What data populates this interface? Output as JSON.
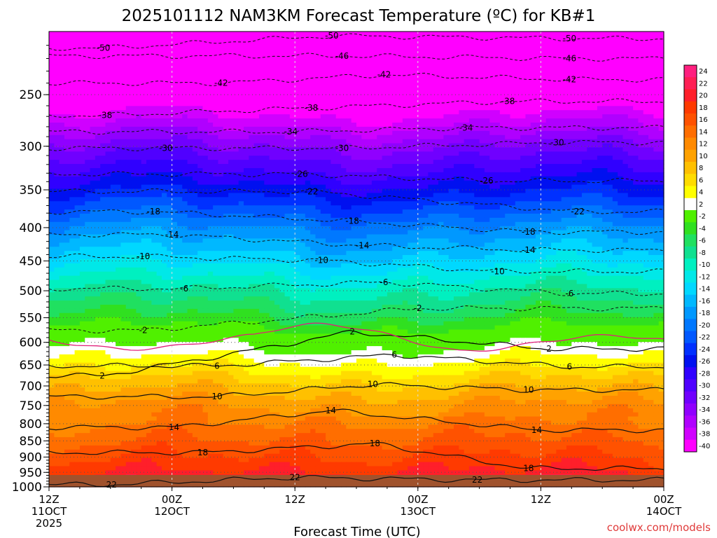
{
  "chart_data": {
    "type": "heatmap",
    "title": "2025101112 NAM3KM Forecast Temperature (ºC) for KB#1",
    "xlabel": "Forecast Time (UTC)",
    "credit": "coolwx.com/models",
    "y_axis": {
      "scale": "log",
      "inverted": true,
      "range": [
        1000,
        200
      ],
      "ticks": [
        250,
        300,
        350,
        400,
        450,
        500,
        550,
        600,
        650,
        700,
        750,
        800,
        850,
        900,
        950,
        1000
      ]
    },
    "x_axis": {
      "range_hours": [
        0,
        60
      ],
      "ticks": [
        {
          "hour": 0,
          "lines": [
            "12Z",
            "11OCT",
            "2025"
          ]
        },
        {
          "hour": 12,
          "lines": [
            "00Z",
            "12OCT"
          ]
        },
        {
          "hour": 24,
          "lines": [
            "12Z"
          ]
        },
        {
          "hour": 36,
          "lines": [
            "00Z",
            "13OCT"
          ]
        },
        {
          "hour": 48,
          "lines": [
            "12Z"
          ]
        },
        {
          "hour": 60,
          "lines": [
            "00Z",
            "14OCT"
          ]
        }
      ]
    },
    "colorbar": {
      "levels": [
        24,
        22,
        20,
        18,
        16,
        14,
        12,
        10,
        8,
        6,
        4,
        2,
        -2,
        -4,
        -6,
        -8,
        -10,
        -12,
        -14,
        -16,
        -18,
        -20,
        -22,
        -24,
        -26,
        -28,
        -30,
        -32,
        -34,
        -36,
        -38,
        -40
      ],
      "colors": [
        "#ff1f7f",
        "#ff1f55",
        "#ff1f2a",
        "#ff3a00",
        "#ff5200",
        "#ff6e00",
        "#ff8a00",
        "#ffa200",
        "#ffc000",
        "#ffdc00",
        "#ffff00",
        "#ffffff",
        "#50f000",
        "#30e020",
        "#20e060",
        "#10e090",
        "#00f0c0",
        "#00e8e8",
        "#00d8ff",
        "#00b8ff",
        "#0098ff",
        "#0078ff",
        "#0058ff",
        "#0030ff",
        "#0010f0",
        "#3000ff",
        "#5000ff",
        "#7000ff",
        "#9000ff",
        "#b000ff",
        "#d000ff",
        "#ff00ff"
      ]
    },
    "temperature_profile": {
      "pressure_hpa": [
        1000,
        950,
        900,
        850,
        800,
        750,
        700,
        650,
        600,
        550,
        500,
        450,
        400,
        350,
        300,
        250,
        200
      ],
      "temperature_c": [
        22,
        20,
        18,
        16,
        14,
        12,
        9,
        5,
        1,
        -4,
        -8,
        -13,
        -18,
        -25,
        -32,
        -42,
        -52
      ]
    },
    "contour_labels": [
      {
        "value": "-50",
        "hour": 5.3,
        "p": 212
      },
      {
        "value": "-50",
        "hour": 27.6,
        "p": 203
      },
      {
        "value": "-50",
        "hour": 50.8,
        "p": 205
      },
      {
        "value": "-46",
        "hour": 28.6,
        "p": 218
      },
      {
        "value": "-46",
        "hour": 50.8,
        "p": 220
      },
      {
        "value": "-42",
        "hour": 16.8,
        "p": 240
      },
      {
        "value": "-42",
        "hour": 32.7,
        "p": 233
      },
      {
        "value": "-42",
        "hour": 50.8,
        "p": 237
      },
      {
        "value": "-38",
        "hour": 5.5,
        "p": 269
      },
      {
        "value": "-38",
        "hour": 25.6,
        "p": 262
      },
      {
        "value": "-38",
        "hour": 44.8,
        "p": 256
      },
      {
        "value": "-34",
        "hour": 23.6,
        "p": 285
      },
      {
        "value": "-34",
        "hour": 40.7,
        "p": 281
      },
      {
        "value": "-30",
        "hour": 11.4,
        "p": 302
      },
      {
        "value": "-30",
        "hour": 28.6,
        "p": 302
      },
      {
        "value": "-30",
        "hour": 49.6,
        "p": 296
      },
      {
        "value": "-26",
        "hour": 24.6,
        "p": 331
      },
      {
        "value": "-26",
        "hour": 42.7,
        "p": 339
      },
      {
        "value": "-22",
        "hour": 25.6,
        "p": 352
      },
      {
        "value": "-22",
        "hour": 51.6,
        "p": 378
      },
      {
        "value": "-18",
        "hour": 10.2,
        "p": 378
      },
      {
        "value": "-18",
        "hour": 29.6,
        "p": 391
      },
      {
        "value": "-18",
        "hour": 46.8,
        "p": 406
      },
      {
        "value": "-14",
        "hour": 12.0,
        "p": 410
      },
      {
        "value": "-14",
        "hour": 30.6,
        "p": 426
      },
      {
        "value": "-14",
        "hour": 46.8,
        "p": 433
      },
      {
        "value": "-10",
        "hour": 9.2,
        "p": 443
      },
      {
        "value": "-10",
        "hour": 26.6,
        "p": 449
      },
      {
        "value": "-10",
        "hour": 43.8,
        "p": 467
      },
      {
        "value": "-6",
        "hour": 13.2,
        "p": 496
      },
      {
        "value": "-6",
        "hour": 32.7,
        "p": 485
      },
      {
        "value": "-6",
        "hour": 50.8,
        "p": 505
      },
      {
        "value": "-2",
        "hour": 36.0,
        "p": 532
      },
      {
        "value": "-2",
        "hour": 9.2,
        "p": 575
      },
      {
        "value": "2",
        "hour": 29.6,
        "p": 578
      },
      {
        "value": "2",
        "hour": 48.8,
        "p": 614
      },
      {
        "value": "2",
        "hour": 5.2,
        "p": 675
      },
      {
        "value": "6",
        "hour": 16.4,
        "p": 652
      },
      {
        "value": "6",
        "hour": 33.7,
        "p": 627
      },
      {
        "value": "6",
        "hour": 50.8,
        "p": 654
      },
      {
        "value": "10",
        "hour": 16.4,
        "p": 727
      },
      {
        "value": "10",
        "hour": 31.6,
        "p": 696
      },
      {
        "value": "10",
        "hour": 46.8,
        "p": 710
      },
      {
        "value": "14",
        "hour": 12.2,
        "p": 810
      },
      {
        "value": "14",
        "hour": 27.5,
        "p": 763
      },
      {
        "value": "14",
        "hour": 47.6,
        "p": 818
      },
      {
        "value": "18",
        "hour": 15.0,
        "p": 886
      },
      {
        "value": "18",
        "hour": 31.8,
        "p": 858
      },
      {
        "value": "18",
        "hour": 46.8,
        "p": 937
      },
      {
        "value": "22",
        "hour": 6.1,
        "p": 992
      },
      {
        "value": "22",
        "hour": 24.0,
        "p": 967
      },
      {
        "value": "22",
        "hour": 41.8,
        "p": 976
      }
    ]
  }
}
